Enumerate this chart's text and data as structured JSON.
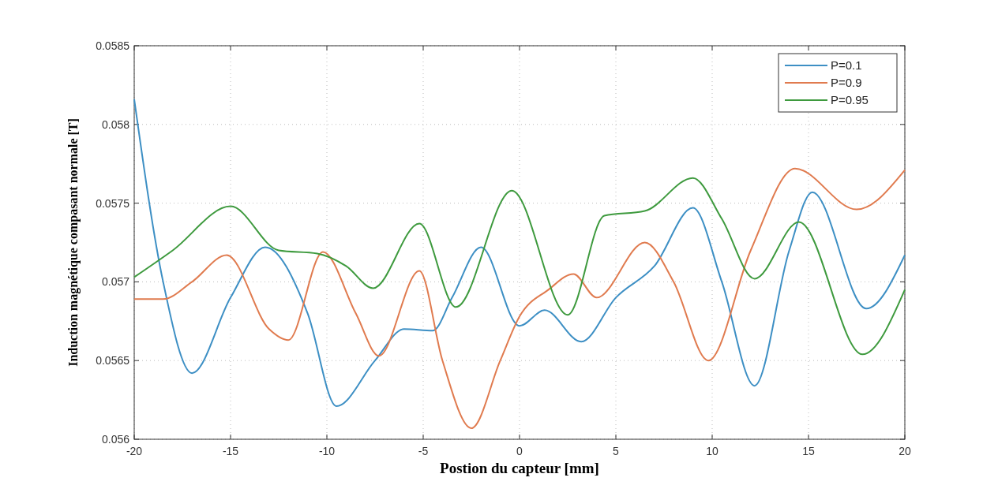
{
  "chart_data": {
    "type": "line",
    "xlabel": "Postion du capteur [mm]",
    "ylabel": "Induction magnétique compasant normale [T]",
    "xlim": [
      -20,
      20
    ],
    "xticks": [
      -20,
      -15,
      -10,
      -5,
      0,
      5,
      10,
      15,
      20
    ],
    "ylim": [
      0.056,
      0.0585
    ],
    "yticks": [
      0.056,
      0.0565,
      0.057,
      0.0575,
      0.058,
      0.0585
    ],
    "grid": true,
    "legend": "top right",
    "line_style": "solid",
    "series": [
      {
        "name": "P=0.1",
        "color": "#3d8fc4",
        "x": [
          -20,
          -18.5,
          -17,
          -15,
          -13.2,
          -11,
          -9.5,
          -7.5,
          -6,
          -4.5,
          -3.5,
          -2,
          0,
          1.3,
          3.2,
          5,
          7,
          9,
          10.5,
          12.2,
          14,
          15.2,
          18,
          20
        ],
        "values": [
          0.05816,
          0.057,
          0.05642,
          0.0569,
          0.05722,
          0.0568,
          0.05621,
          0.0565,
          0.0567,
          0.05669,
          0.0569,
          0.05722,
          0.05672,
          0.05682,
          0.05662,
          0.0569,
          0.0571,
          0.05747,
          0.057,
          0.05634,
          0.0572,
          0.05757,
          0.05683,
          0.05717
        ]
      },
      {
        "name": "P=0.9",
        "color": "#e07b4f",
        "x": [
          -20,
          -18.5,
          -17,
          -15.2,
          -13,
          -12,
          -10.2,
          -8.5,
          -7.3,
          -5.2,
          -4,
          -2.5,
          -1,
          0,
          1.5,
          2.8,
          4,
          6.5,
          8,
          9.8,
          12,
          14.3,
          17.5,
          20
        ],
        "values": [
          0.05689,
          0.05689,
          0.057,
          0.05717,
          0.0567,
          0.05663,
          0.05719,
          0.0568,
          0.05653,
          0.05707,
          0.0565,
          0.05607,
          0.0565,
          0.05678,
          0.05695,
          0.05705,
          0.0569,
          0.05725,
          0.057,
          0.0565,
          0.0572,
          0.05772,
          0.05746,
          0.05771
        ]
      },
      {
        "name": "P=0.95",
        "color": "#3e9a3e",
        "x": [
          -20,
          -18,
          -15,
          -12.5,
          -10.5,
          -9,
          -7.6,
          -5.2,
          -3.3,
          -0.4,
          2.5,
          4.4,
          6.5,
          9,
          10.5,
          12.2,
          14.5,
          17.8,
          20
        ],
        "values": [
          0.05703,
          0.0572,
          0.05748,
          0.0572,
          0.05718,
          0.0571,
          0.05696,
          0.05737,
          0.05684,
          0.05758,
          0.05679,
          0.05742,
          0.05745,
          0.05766,
          0.0574,
          0.05702,
          0.05738,
          0.05654,
          0.05695
        ]
      }
    ]
  }
}
